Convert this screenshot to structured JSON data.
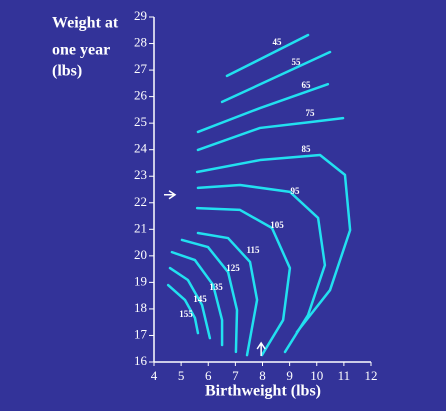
{
  "chart_data": {
    "type": "contour",
    "ylabel": [
      "Weight at",
      "one year",
      "(lbs)"
    ],
    "xlabel": "Birthweight (lbs)",
    "xlim": [
      4,
      12
    ],
    "xticks": [
      4,
      5,
      6,
      7,
      8,
      9,
      10,
      11,
      12
    ],
    "ylim": [
      16,
      29
    ],
    "yticks": [
      16,
      17,
      18,
      19,
      20,
      21,
      22,
      23,
      24,
      25,
      26,
      27,
      28,
      29
    ],
    "color": "#22e0f0",
    "arrow_x": 7.95,
    "arrow_y": 22.3,
    "contours": [
      {
        "level": 45,
        "x": [
          6.69,
          9.68
        ],
        "y": [
          26.78,
          28.32
        ]
      },
      {
        "level": 55,
        "x": [
          6.51,
          10.49
        ],
        "y": [
          25.8,
          27.68
        ]
      },
      {
        "level": 65,
        "x": [
          5.62,
          7.91,
          10.41
        ],
        "y": [
          24.67,
          25.57,
          26.47
        ]
      },
      {
        "level": 75,
        "x": [
          5.62,
          7.91,
          9.75,
          10.97
        ],
        "y": [
          23.99,
          24.82,
          25.04,
          25.19
        ]
      },
      {
        "level": 85,
        "x": [
          5.59,
          7.91,
          10.12,
          11.04,
          11.23,
          10.49,
          9.27
        ],
        "y": [
          23.16,
          23.61,
          23.8,
          23.05,
          20.97,
          18.71,
          17.13
        ]
      },
      {
        "level": 95,
        "x": [
          5.62,
          7.17,
          9.01,
          10.05,
          10.3,
          9.68,
          8.83
        ],
        "y": [
          22.56,
          22.67,
          22.41,
          21.43,
          19.65,
          17.77,
          16.38
        ]
      },
      {
        "level": 105,
        "x": [
          5.59,
          7.17,
          8.35,
          9.01,
          8.76,
          7.98
        ],
        "y": [
          21.8,
          21.73,
          21.05,
          19.54,
          17.58,
          16.26
        ]
      },
      {
        "level": 115,
        "x": [
          5.62,
          6.73,
          7.54,
          7.8,
          7.43
        ],
        "y": [
          20.86,
          20.67,
          19.77,
          18.34,
          16.26
        ]
      },
      {
        "level": 125,
        "x": [
          5.03,
          5.99,
          6.73,
          7.06,
          7.02
        ],
        "y": [
          20.6,
          20.33,
          19.39,
          17.96,
          16.38
        ]
      },
      {
        "level": 135,
        "x": [
          4.66,
          5.51,
          6.18,
          6.51,
          6.51
        ],
        "y": [
          20.14,
          19.84,
          18.9,
          17.58,
          16.64
        ]
      },
      {
        "level": 145,
        "x": [
          4.59,
          5.25,
          5.77,
          6.06
        ],
        "y": [
          19.54,
          19.09,
          18.15,
          16.9
        ]
      },
      {
        "level": 155,
        "x": [
          4.52,
          5.14,
          5.51,
          5.62
        ],
        "y": [
          18.9,
          18.34,
          17.66,
          17.09
        ]
      }
    ]
  }
}
